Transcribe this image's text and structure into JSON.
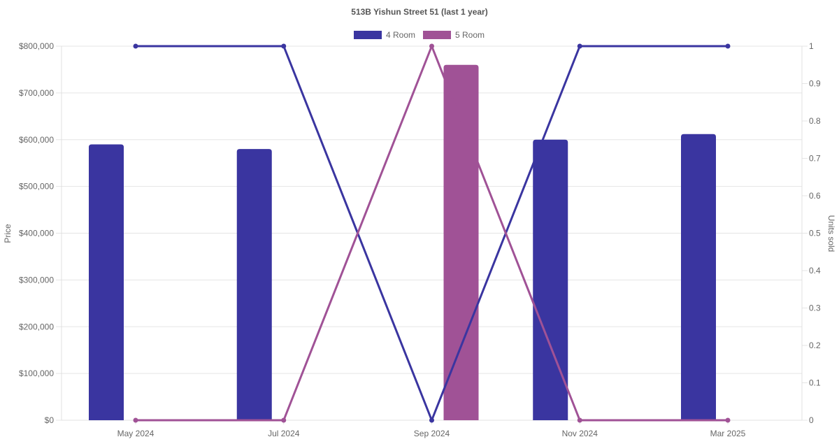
{
  "chart_data": {
    "type": "bar",
    "title": "513B Yishun Street 51 (last 1 year)",
    "categories": [
      "May 2024",
      "Jul 2024",
      "Sep 2024",
      "Nov 2024",
      "Mar 2025"
    ],
    "left_axis": {
      "label": "Price",
      "ylim": [
        0,
        800000
      ],
      "ticks": [
        0,
        100000,
        200000,
        300000,
        400000,
        500000,
        600000,
        700000,
        800000
      ],
      "tick_labels": [
        "$0",
        "$100,000",
        "$200,000",
        "$300,000",
        "$400,000",
        "$500,000",
        "$600,000",
        "$700,000",
        "$800,000"
      ]
    },
    "right_axis": {
      "label": "Units sold",
      "ylim": [
        0,
        1
      ],
      "ticks": [
        0,
        0.1,
        0.2,
        0.3,
        0.4,
        0.5,
        0.6,
        0.7,
        0.8,
        0.9,
        1
      ],
      "tick_labels": [
        "0",
        "0.1",
        "0.2",
        "0.3",
        "0.4",
        "0.5",
        "0.6",
        "0.7",
        "0.8",
        "0.9",
        "1"
      ]
    },
    "series": [
      {
        "name": "4 Room",
        "color": "#3a35a0",
        "price": [
          590000,
          580000,
          null,
          600000,
          612000
        ],
        "units": [
          1,
          1,
          0,
          1,
          1
        ]
      },
      {
        "name": "5 Room",
        "color": "#a05296",
        "price": [
          null,
          null,
          760000,
          null,
          null
        ],
        "units": [
          0,
          0,
          1,
          0,
          0
        ]
      }
    ],
    "grid": true,
    "legend_position": "top-center"
  }
}
